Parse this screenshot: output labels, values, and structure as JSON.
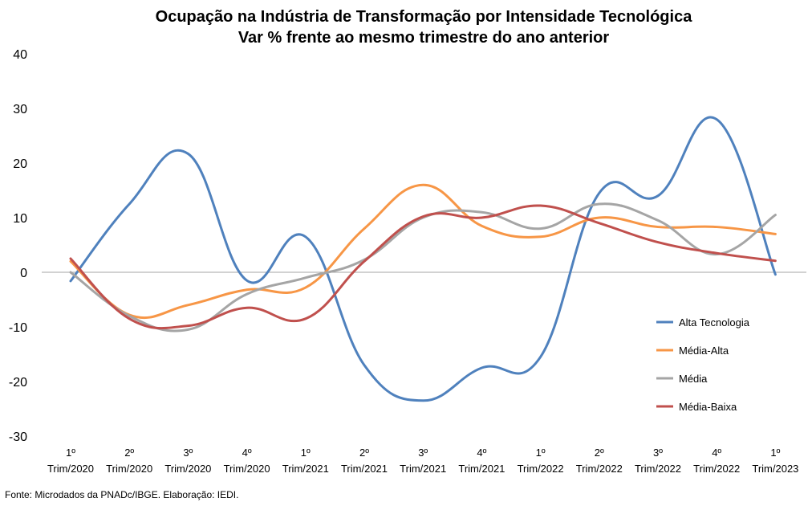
{
  "chart_data": {
    "type": "line",
    "title_line1": "Ocupação na Indústria de Transformação por Intensidade Tecnológica",
    "title_line2": "Var % frente ao mesmo trimestre do ano anterior",
    "source": "Fonte: Microdados da PNADc/IBGE. Elaboração: IEDI.",
    "ylim": [
      -30,
      40
    ],
    "yticks": [
      "40",
      "30",
      "20",
      "10",
      "0",
      "-10",
      "-20",
      "-30"
    ],
    "categories": [
      [
        "1º",
        "Trim/2020"
      ],
      [
        "2º",
        "Trim/2020"
      ],
      [
        "3º",
        "Trim/2020"
      ],
      [
        "4º",
        "Trim/2020"
      ],
      [
        "1º",
        "Trim/2021"
      ],
      [
        "2º",
        "Trim/2021"
      ],
      [
        "3º",
        "Trim/2021"
      ],
      [
        "4º",
        "Trim/2021"
      ],
      [
        "1º",
        "Trim/2022"
      ],
      [
        "2º",
        "Trim/2022"
      ],
      [
        "3º",
        "Trim/2022"
      ],
      [
        "4º",
        "Trim/2022"
      ],
      [
        "1º",
        "Trim/2023"
      ]
    ],
    "legend_position": "right",
    "series": [
      {
        "name": "Alta Tecnologia",
        "color": "#4F81BD",
        "values": [
          -1.6,
          12.5,
          21.7,
          -1.5,
          6.5,
          -17.0,
          -23.5,
          -17.5,
          -15.5,
          14.5,
          14.0,
          28.0,
          -0.4
        ]
      },
      {
        "name": "Média-Alta",
        "color": "#F79646",
        "values": [
          2.0,
          -7.8,
          -6.0,
          -3.2,
          -2.8,
          8.0,
          16.0,
          8.5,
          6.5,
          10.0,
          8.3,
          8.3,
          7.0
        ]
      },
      {
        "name": "Média",
        "color": "#A5A5A5",
        "values": [
          0.0,
          -8.0,
          -10.5,
          -4.0,
          -1.0,
          2.3,
          10.0,
          11.0,
          8.0,
          12.5,
          9.5,
          3.3,
          10.5
        ]
      },
      {
        "name": "Média-Baixa",
        "color": "#C0504D",
        "values": [
          2.5,
          -8.5,
          -9.8,
          -6.5,
          -8.5,
          2.0,
          10.2,
          10.0,
          12.2,
          9.0,
          5.5,
          3.5,
          2.1
        ]
      }
    ]
  }
}
